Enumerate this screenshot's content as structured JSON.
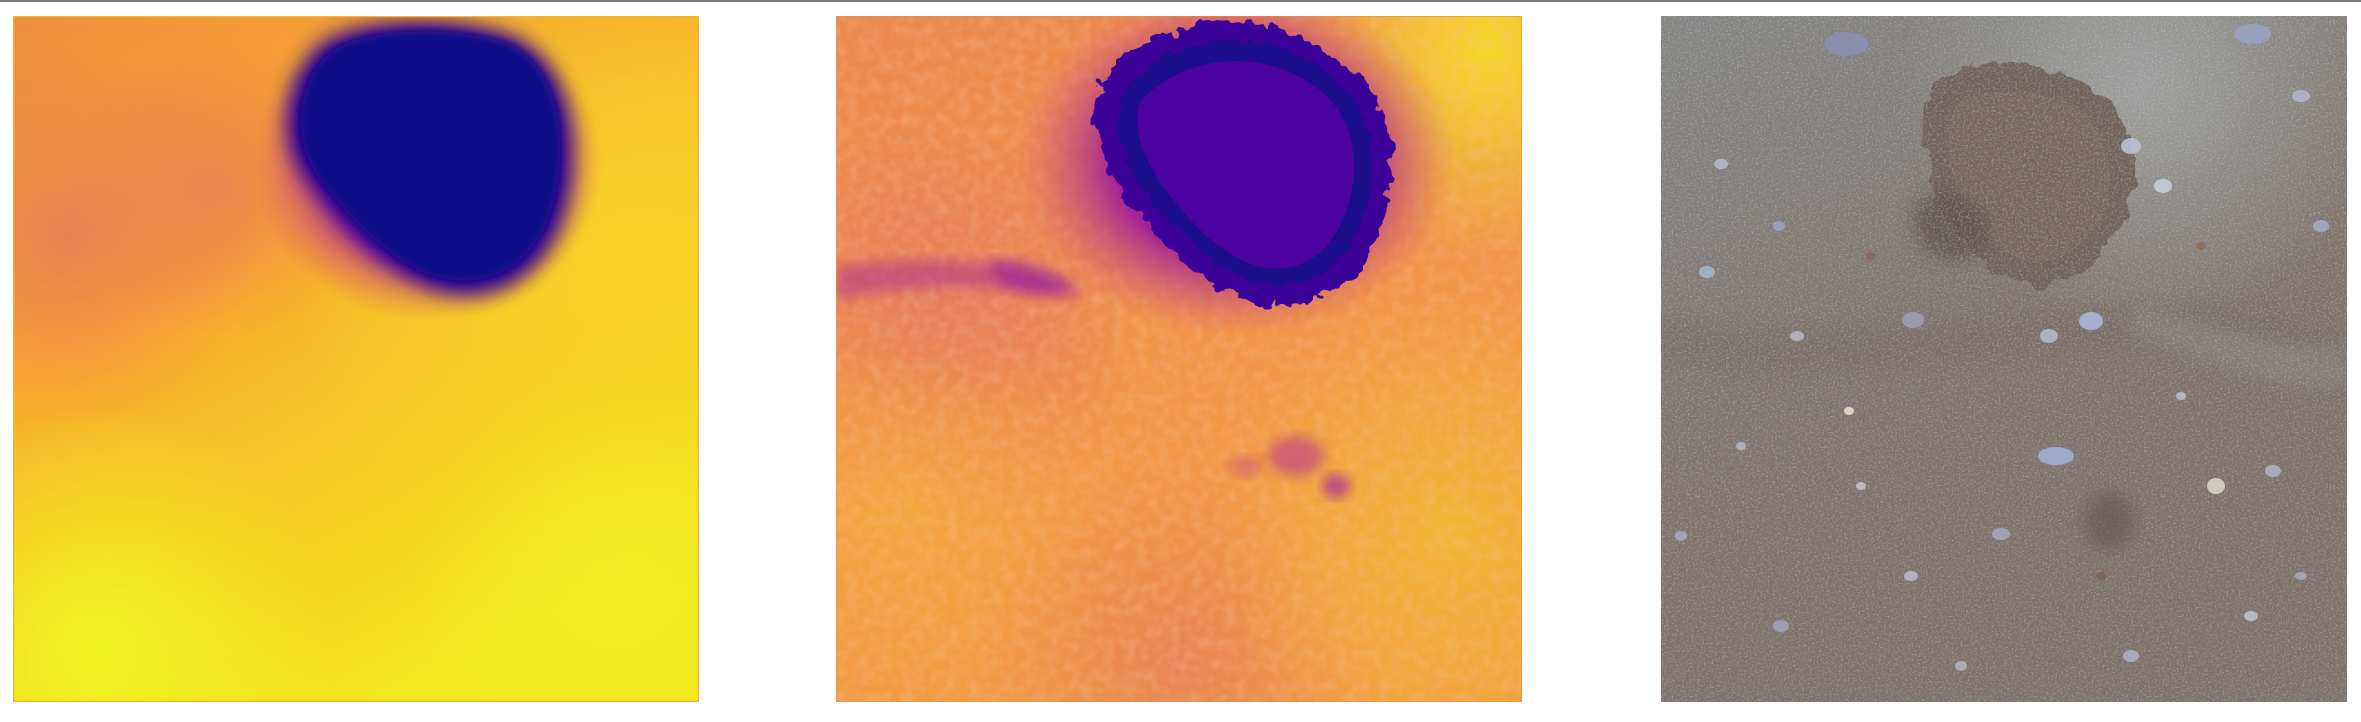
{
  "figure": {
    "panels": [
      {
        "label": "",
        "kind": "smooth depth estimate",
        "colormap": "plasma"
      },
      {
        "label": "",
        "kind": "detailed depth estimate",
        "colormap": "plasma"
      },
      {
        "label": "",
        "kind": "rgb photo of gravelly ground with a shallow pit",
        "colormap": "natural"
      }
    ],
    "colors": {
      "plasma_dark": "#0d0887",
      "plasma_purple": "#6a00a8",
      "plasma_magenta": "#b12a90",
      "plasma_orange": "#e16462",
      "plasma_amber": "#fca636",
      "plasma_yellow": "#f0f921",
      "soil_base": "#7e756f",
      "pebble_blue": "#a6b2cc"
    }
  }
}
